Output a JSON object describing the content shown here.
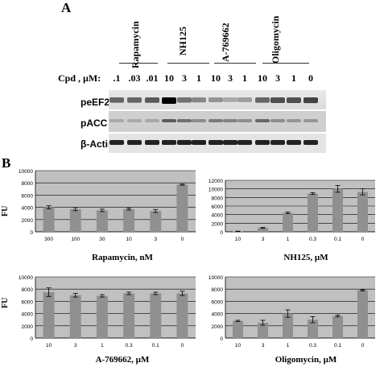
{
  "panels": {
    "a": "A",
    "b": "B"
  },
  "blot": {
    "compounds": [
      "Rapamycin",
      "NH125",
      "A-769662",
      "Oligomycin"
    ],
    "conc_label": "Cpd , µM:",
    "doses": [
      ".1",
      ".03",
      ".01",
      "10",
      "3",
      "1",
      "10",
      "3",
      "1",
      "10",
      "3",
      "1",
      "0"
    ],
    "rows": [
      "peEF2",
      "pACC",
      "β-Actin"
    ]
  },
  "y_axis_label": "FU",
  "chart_data": [
    {
      "type": "bar",
      "categories": [
        "300",
        "100",
        "30",
        "10",
        "3",
        "0"
      ],
      "values": [
        4000,
        3700,
        3500,
        3700,
        3400,
        7700
      ],
      "errors": [
        250,
        250,
        200,
        150,
        250,
        80
      ],
      "xlabel": "Rapamycin, nM",
      "ylabel": "FU",
      "ylim": [
        0,
        10000
      ],
      "yticks": [
        "0",
        "2000",
        "4000",
        "6000",
        "8000",
        "10000"
      ],
      "grid": true,
      "bar_color": "#909090",
      "bg_color": "#c0c0c0"
    },
    {
      "type": "bar",
      "categories": [
        "10",
        "3",
        "1",
        "0.3",
        "0.1",
        "0"
      ],
      "values": [
        100,
        900,
        4400,
        8900,
        10000,
        9300
      ],
      "errors": [
        50,
        120,
        200,
        200,
        800,
        700
      ],
      "xlabel": "NH125, µM",
      "ylabel": "",
      "ylim": [
        0,
        12000
      ],
      "yticks": [
        "0",
        "2000",
        "4000",
        "6000",
        "8000",
        "10000",
        "12000"
      ],
      "grid": true,
      "bar_color": "#909090",
      "bg_color": "#c0c0c0"
    },
    {
      "type": "bar",
      "categories": [
        "10",
        "3",
        "1",
        "0.3",
        "0.1",
        "0"
      ],
      "values": [
        7500,
        7000,
        6900,
        7300,
        7300,
        7300
      ],
      "errors": [
        700,
        300,
        200,
        200,
        200,
        350
      ],
      "xlabel": "A-769662, µM",
      "ylabel": "FU",
      "ylim": [
        0,
        10000
      ],
      "yticks": [
        "0",
        "2000",
        "4000",
        "6000",
        "8000",
        "10000"
      ],
      "grid": true,
      "bar_color": "#909090",
      "bg_color": "#c0c0c0"
    },
    {
      "type": "bar",
      "categories": [
        "10",
        "3",
        "1",
        "0.3",
        "0.1",
        "0"
      ],
      "values": [
        2800,
        2500,
        4000,
        3000,
        3600,
        7800
      ],
      "errors": [
        100,
        400,
        600,
        500,
        150,
        100
      ],
      "xlabel": "Oligomycin, µM",
      "ylabel": "",
      "ylim": [
        0,
        10000
      ],
      "yticks": [
        "0",
        "2000",
        "4000",
        "6000",
        "8000",
        "10000"
      ],
      "grid": true,
      "bar_color": "#909090",
      "bg_color": "#c0c0c0"
    }
  ]
}
